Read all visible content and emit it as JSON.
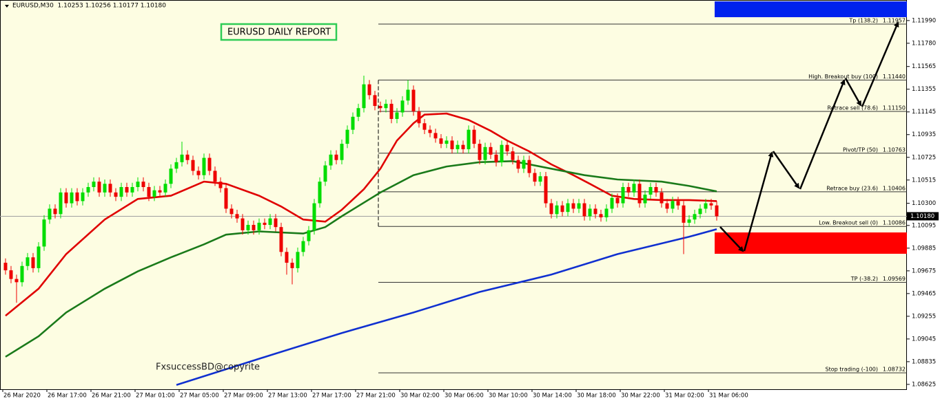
{
  "header": "EURUSD,M30  1.10253 1.10256 1.10177 1.10180",
  "title_box": "EURUSD DAILY REPORT",
  "watermark": "FxsuccessBD@copyrite",
  "chart_data": {
    "type": "candlestick",
    "up_color": "#00dd00",
    "down_color": "#ee0000",
    "xlim": [
      -1,
      163.5
    ],
    "xticks": [
      {
        "value": 0,
        "label": "26 Mar 2020"
      },
      {
        "value": 8,
        "label": "26 Mar 17:00"
      },
      {
        "value": 16,
        "label": "26 Mar 21:00"
      },
      {
        "value": 24,
        "label": "27 Mar 01:00"
      },
      {
        "value": 32,
        "label": "27 Mar 05:00"
      },
      {
        "value": 40,
        "label": "27 Mar 09:00"
      },
      {
        "value": 48,
        "label": "27 Mar 13:00"
      },
      {
        "value": 56,
        "label": "27 Mar 17:00"
      },
      {
        "value": 64,
        "label": "27 Mar 21:00"
      },
      {
        "value": 72,
        "label": "30 Mar 02:00"
      },
      {
        "value": 80,
        "label": "30 Mar 06:00"
      },
      {
        "value": 88,
        "label": "30 Mar 10:00"
      },
      {
        "value": 96,
        "label": "30 Mar 14:00"
      },
      {
        "value": 104,
        "label": "30 Mar 18:00"
      },
      {
        "value": 112,
        "label": "30 Mar 22:00"
      },
      {
        "value": 120,
        "label": "31 Mar 02:00"
      },
      {
        "value": 128,
        "label": "31 Mar 06:00"
      }
    ],
    "ylim": [
      1.0858,
      1.1218
    ],
    "yticks": [
      {
        "value": 1.1199,
        "label": "1.11990"
      },
      {
        "value": 1.1178,
        "label": "1.11780"
      },
      1.11565,
      1.11355,
      1.11145,
      1.10935,
      1.10725,
      1.10515,
      {
        "value": 1.103,
        "label": "1.10300"
      },
      1.10095,
      1.09885,
      1.09675,
      1.09465,
      1.09255,
      1.09045,
      1.08835,
      1.08625
    ],
    "open": [
      1.0975,
      1.0968,
      1.096,
      1.0957,
      1.0972,
      1.098,
      1.097,
      1.099,
      1.1015,
      1.1025,
      1.102,
      1.104,
      1.103,
      1.104,
      1.1032,
      1.104,
      1.1045,
      1.105,
      1.104,
      1.1048,
      1.104,
      1.1036,
      1.1045,
      1.104,
      1.1045,
      1.105,
      1.1045,
      1.1036,
      1.1042,
      1.104,
      1.1048,
      1.1062,
      1.1068,
      1.1075,
      1.107,
      1.106,
      1.1056,
      1.1072,
      1.106,
      1.105,
      1.1044,
      1.1025,
      1.102,
      1.1016,
      1.1005,
      1.101,
      1.1005,
      1.1012,
      1.101,
      1.1016,
      1.1008,
      1.0985,
      1.0975,
      1.097,
      1.0985,
      1.0995,
      1.1005,
      1.103,
      1.105,
      1.1065,
      1.1075,
      1.107,
      1.1085,
      1.1098,
      1.111,
      1.1118,
      1.114,
      1.113,
      1.112,
      1.1118,
      1.1122,
      1.1108,
      1.1114,
      1.1125,
      1.1135,
      1.1115,
      1.1104,
      1.1098,
      1.1095,
      1.109,
      1.1085,
      1.1088,
      1.108,
      1.1084,
      1.108,
      1.1098,
      1.1085,
      1.107,
      1.1082,
      1.1075,
      1.1068,
      1.1084,
      1.1078,
      1.107,
      1.1062,
      1.107,
      1.1058,
      1.105,
      1.1055,
      1.103,
      1.102,
      1.1028,
      1.1022,
      1.103,
      1.1025,
      1.103,
      1.1018,
      1.1025,
      1.102,
      1.1017,
      1.1025,
      1.1035,
      1.103,
      1.1045,
      1.104,
      1.1048,
      1.103,
      1.1038,
      1.1045,
      1.104,
      1.103,
      1.1025,
      1.1032,
      1.1028,
      1.1012,
      1.1015,
      1.102,
      1.1025,
      1.103,
      1.1028
    ],
    "high": [
      1.0979,
      1.0972,
      1.0964,
      1.0976,
      1.0984,
      1.0984,
      1.0994,
      1.1019,
      1.1029,
      1.1029,
      1.1044,
      1.1044,
      1.1044,
      1.1044,
      1.1044,
      1.1049,
      1.1054,
      1.1054,
      1.1052,
      1.1052,
      1.1044,
      1.1049,
      1.1049,
      1.1049,
      1.1054,
      1.1054,
      1.1049,
      1.1046,
      1.1046,
      1.1052,
      1.1066,
      1.1072,
      1.1087,
      1.1079,
      1.1074,
      1.1064,
      1.1076,
      1.1076,
      1.1064,
      1.1054,
      1.1048,
      1.1029,
      1.1024,
      1.102,
      1.1014,
      1.1014,
      1.1016,
      1.1016,
      1.102,
      1.102,
      1.1012,
      1.0989,
      1.0979,
      1.0989,
      1.0999,
      1.1009,
      1.1034,
      1.1054,
      1.1069,
      1.1079,
      1.1079,
      1.1089,
      1.1102,
      1.1114,
      1.1122,
      1.1148,
      1.1144,
      1.1134,
      1.1124,
      1.1126,
      1.1126,
      1.1118,
      1.1129,
      1.1144,
      1.1139,
      1.1119,
      1.1108,
      1.1102,
      1.1099,
      1.1094,
      1.1092,
      1.1092,
      1.1088,
      1.1088,
      1.1102,
      1.1102,
      1.1089,
      1.1086,
      1.1086,
      1.1079,
      1.1088,
      1.1088,
      1.1082,
      1.1074,
      1.1074,
      1.1074,
      1.1062,
      1.1059,
      1.1059,
      1.1034,
      1.1032,
      1.1032,
      1.1034,
      1.1034,
      1.1034,
      1.1034,
      1.1029,
      1.1029,
      1.1024,
      1.1029,
      1.1039,
      1.1039,
      1.1049,
      1.1049,
      1.1052,
      1.1052,
      1.1042,
      1.1049,
      1.1049,
      1.1044,
      1.1034,
      1.1036,
      1.1036,
      1.1032,
      1.1019,
      1.1024,
      1.1029,
      1.1034,
      1.1034,
      1.1032
    ],
    "low": [
      1.0964,
      1.0956,
      1.0938,
      1.0953,
      1.0968,
      1.0966,
      1.0966,
      1.0986,
      1.1011,
      1.1016,
      1.1016,
      1.1026,
      1.1026,
      1.1028,
      1.1028,
      1.1036,
      1.1041,
      1.1036,
      1.1036,
      1.1036,
      1.1032,
      1.1032,
      1.1036,
      1.1036,
      1.1041,
      1.1041,
      1.1032,
      1.1032,
      1.1036,
      1.1036,
      1.1044,
      1.1058,
      1.1064,
      1.1066,
      1.1056,
      1.1052,
      1.1052,
      1.1056,
      1.1046,
      1.104,
      1.1021,
      1.1016,
      1.1012,
      1.1001,
      1.1001,
      1.1001,
      1.1001,
      1.1006,
      1.1006,
      1.1004,
      1.0981,
      1.0964,
      1.0955,
      1.0966,
      1.0981,
      1.0991,
      1.1001,
      1.1026,
      1.1046,
      1.1061,
      1.1066,
      1.1066,
      1.1081,
      1.1094,
      1.1106,
      1.1114,
      1.1126,
      1.1116,
      1.1114,
      1.1114,
      1.1104,
      1.1104,
      1.111,
      1.1121,
      1.1111,
      1.11,
      1.1094,
      1.1091,
      1.1086,
      1.1081,
      1.1081,
      1.1076,
      1.1076,
      1.1076,
      1.1076,
      1.1081,
      1.1066,
      1.1066,
      1.1071,
      1.1064,
      1.1064,
      1.1074,
      1.1066,
      1.1058,
      1.1058,
      1.1054,
      1.1046,
      1.1046,
      1.1026,
      1.1016,
      1.1016,
      1.1018,
      1.1018,
      1.1021,
      1.1021,
      1.1014,
      1.1014,
      1.1016,
      1.1013,
      1.1013,
      1.1021,
      1.1026,
      1.1026,
      1.1036,
      1.1036,
      1.1026,
      1.1026,
      1.1034,
      1.1036,
      1.1026,
      1.1021,
      1.1021,
      1.1024,
      1.0983,
      1.1008,
      1.1011,
      1.1016,
      1.1021,
      1.1024,
      1.1014
    ],
    "close": [
      1.0968,
      1.096,
      1.0957,
      1.0972,
      1.098,
      1.097,
      1.099,
      1.1015,
      1.1025,
      1.102,
      1.104,
      1.103,
      1.104,
      1.1032,
      1.104,
      1.1045,
      1.105,
      1.104,
      1.1048,
      1.104,
      1.1036,
      1.1045,
      1.104,
      1.1045,
      1.105,
      1.1045,
      1.1036,
      1.1042,
      1.104,
      1.1048,
      1.1062,
      1.1068,
      1.1075,
      1.107,
      1.106,
      1.1056,
      1.1072,
      1.106,
      1.105,
      1.1044,
      1.1025,
      1.102,
      1.1016,
      1.1005,
      1.101,
      1.1005,
      1.1012,
      1.101,
      1.1016,
      1.1008,
      1.0985,
      1.0975,
      1.097,
      1.0985,
      1.0995,
      1.1005,
      1.103,
      1.105,
      1.1065,
      1.1075,
      1.107,
      1.1085,
      1.1098,
      1.111,
      1.1118,
      1.114,
      1.113,
      1.112,
      1.1118,
      1.1122,
      1.1108,
      1.1114,
      1.1125,
      1.1135,
      1.1115,
      1.1104,
      1.1098,
      1.1095,
      1.109,
      1.1085,
      1.1088,
      1.108,
      1.1084,
      1.108,
      1.1098,
      1.1085,
      1.107,
      1.1082,
      1.1075,
      1.1068,
      1.1084,
      1.1078,
      1.107,
      1.1062,
      1.107,
      1.1058,
      1.105,
      1.1055,
      1.103,
      1.102,
      1.1028,
      1.1022,
      1.103,
      1.1025,
      1.103,
      1.1018,
      1.1025,
      1.102,
      1.1017,
      1.1025,
      1.1035,
      1.103,
      1.1045,
      1.104,
      1.1048,
      1.103,
      1.1038,
      1.1045,
      1.104,
      1.103,
      1.1025,
      1.1032,
      1.1028,
      1.1012,
      1.1015,
      1.102,
      1.1025,
      1.103,
      1.1028,
      1.1018
    ],
    "lines": [
      {
        "color": "#e00000",
        "x": [
          0,
          6,
          11,
          18,
          24,
          30,
          36,
          40,
          46,
          50,
          54,
          58,
          61,
          65,
          68,
          71,
          74,
          76,
          80,
          84,
          88,
          91,
          95,
          99,
          103,
          106,
          110,
          114,
          119,
          124,
          129
        ],
        "values": [
          1.0926,
          1.0951,
          1.0983,
          1.1015,
          1.1034,
          1.1037,
          1.105,
          1.1048,
          1.1037,
          1.1027,
          1.1015,
          1.1013,
          1.1024,
          1.1043,
          1.1062,
          1.1088,
          1.1104,
          1.1112,
          1.1113,
          1.1107,
          1.1097,
          1.1088,
          1.1078,
          1.1066,
          1.1056,
          1.1048,
          1.1037,
          1.1034,
          1.1033,
          1.1033,
          1.1032
        ]
      },
      {
        "color": "#1a7a1a",
        "x": [
          0,
          6,
          11,
          18,
          24,
          30,
          36,
          40,
          46,
          54,
          58,
          61,
          68,
          74,
          80,
          86,
          92,
          99,
          105,
          111,
          119,
          124,
          129
        ],
        "values": [
          1.0888,
          1.0907,
          1.0929,
          1.0951,
          1.0967,
          1.098,
          1.0992,
          1.1001,
          1.1004,
          1.1002,
          1.1008,
          1.1018,
          1.104,
          1.1056,
          1.1064,
          1.1068,
          1.1069,
          1.1062,
          1.1056,
          1.1052,
          1.105,
          1.1046,
          1.1041
        ]
      },
      {
        "color": "#1030d0",
        "x": [
          31,
          49,
          61,
          74,
          86,
          99,
          111,
          124,
          129
        ],
        "values": [
          1.0862,
          1.0891,
          1.091,
          1.0929,
          1.0948,
          1.0964,
          1.0983,
          1.0999,
          1.1006
        ]
      }
    ],
    "levels": [
      {
        "name": "Tp (138.2)",
        "price": 1.11957
      },
      {
        "name": "High. Breakout buy (100)",
        "price": {
          "value": 1.1144,
          "label": "1.11440"
        }
      },
      {
        "name": "Retrace sell (78.6)",
        "price": {
          "value": 1.1115,
          "label": "1.11150"
        }
      },
      {
        "name": "Pivot/TP (50)",
        "price": 1.10763
      },
      {
        "name": "Retrace buy (23.6)",
        "price": 1.10406
      },
      {
        "name": "Low. Breakout sell (0)",
        "price": 1.10086
      },
      {
        "name": "TP (-38.2)",
        "price": 1.09569
      },
      {
        "name": "Stop trading (-100)",
        "price": 1.08732
      }
    ],
    "current_price": {
      "value": 1.1018,
      "label": "1.10180"
    }
  }
}
